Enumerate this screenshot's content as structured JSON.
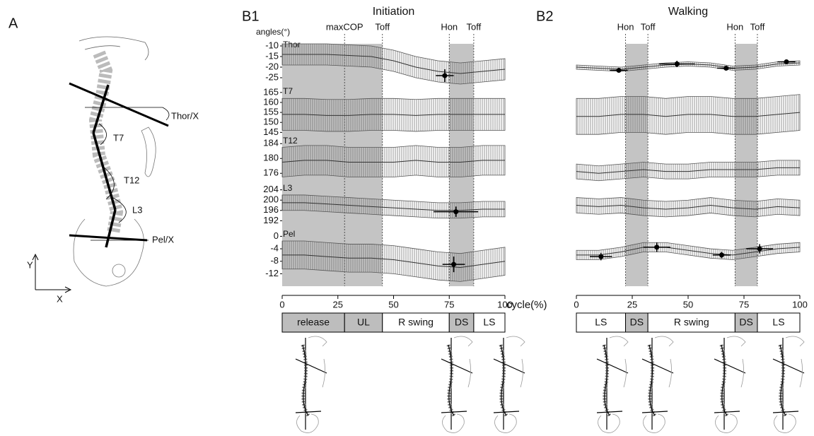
{
  "panel_a": {
    "label": "A",
    "annotations": [
      "Thor/X",
      "T7",
      "T12",
      "L3",
      "Pel/X"
    ],
    "axes": [
      "Y",
      "X"
    ]
  },
  "chart_data": [
    {
      "type": "line",
      "label": "B1",
      "title": "Initiation",
      "y_label": "angles(°)",
      "x_label": "cycle(%)",
      "xlim": [
        0,
        100
      ],
      "xticks": [
        0,
        25,
        50,
        75,
        100
      ],
      "x": [
        0,
        10,
        20,
        30,
        40,
        50,
        60,
        70,
        80,
        90,
        100
      ],
      "events": [
        {
          "label": "maxCOP",
          "x": 28
        },
        {
          "label": "Toff",
          "x": 45
        },
        {
          "label": "Hon",
          "x": 75
        },
        {
          "label": "Toff",
          "x": 86
        }
      ],
      "shaded": [
        [
          0,
          45
        ],
        [
          75,
          86
        ]
      ],
      "phases": [
        {
          "label": "release",
          "start": 0,
          "end": 28,
          "shaded": true
        },
        {
          "label": "UL",
          "start": 28,
          "end": 45,
          "shaded": true
        },
        {
          "label": "R swing",
          "start": 45,
          "end": 75,
          "shaded": false
        },
        {
          "label": "DS",
          "start": 75,
          "end": 86,
          "shaded": true
        },
        {
          "label": "LS",
          "start": 86,
          "end": 100,
          "shaded": false
        }
      ],
      "rows": [
        {
          "name": "Thor",
          "ylim": [
            -29,
            -9
          ],
          "yticks": [
            -10,
            -15,
            -20,
            -25
          ],
          "values": [
            -14,
            -14,
            -14,
            -14.5,
            -15,
            -17,
            -20,
            -22,
            -23,
            -22,
            -21
          ],
          "sd": [
            5,
            5,
            5,
            5,
            5,
            5,
            5,
            5,
            5,
            5,
            5
          ],
          "markers": [
            {
              "x": 73,
              "y": -24,
              "xerr": 4,
              "yerr": 3
            }
          ]
        },
        {
          "name": "T7",
          "ylim": [
            143,
            166
          ],
          "yticks": [
            165,
            160,
            155,
            150,
            145
          ],
          "values": [
            154,
            154,
            153.5,
            153.5,
            154,
            154,
            153.5,
            154,
            154,
            154,
            154
          ],
          "sd": [
            8,
            8,
            8,
            8,
            8,
            8,
            8,
            8,
            8,
            8,
            8
          ],
          "markers": []
        },
        {
          "name": "T12",
          "ylim": [
            173,
            185
          ],
          "yticks": [
            184,
            180,
            176
          ],
          "values": [
            179,
            179.5,
            179.5,
            179,
            179,
            179,
            179.5,
            179,
            179,
            179.5,
            179.5
          ],
          "sd": [
            4,
            4,
            4,
            4,
            4,
            4,
            4,
            4,
            4,
            4,
            4
          ],
          "markers": []
        },
        {
          "name": "L3",
          "ylim": [
            191,
            205
          ],
          "yticks": [
            204,
            200,
            196,
            192
          ],
          "values": [
            199,
            199,
            198.5,
            198,
            197.5,
            197,
            196.5,
            196,
            196,
            196.5,
            196.5
          ],
          "sd": [
            3,
            3,
            3,
            3,
            3,
            3,
            3,
            3,
            3,
            3,
            3
          ],
          "markers": [
            {
              "x": 78,
              "y": 195.5,
              "xerr": 10,
              "yerr": 2
            }
          ]
        },
        {
          "name": "Pel",
          "ylim": [
            -16,
            1
          ],
          "yticks": [
            0,
            -4,
            -8,
            -12
          ],
          "values": [
            -6,
            -6,
            -6.5,
            -7,
            -7,
            -7.5,
            -8.5,
            -9.5,
            -10,
            -9,
            -8
          ],
          "sd": [
            4.5,
            4.5,
            4.5,
            4.5,
            4.5,
            4.5,
            4.5,
            4.5,
            4.5,
            4.5,
            4.5
          ],
          "markers": [
            {
              "x": 77,
              "y": -9,
              "xerr": 5,
              "yerr": 2.5
            }
          ]
        }
      ]
    },
    {
      "type": "line",
      "label": "B2",
      "title": "Walking",
      "xlim": [
        0,
        100
      ],
      "xticks": [
        0,
        25,
        50,
        75,
        100
      ],
      "x": [
        0,
        10,
        20,
        30,
        40,
        50,
        60,
        70,
        80,
        90,
        100
      ],
      "events": [
        {
          "label": "Hon",
          "x": 22
        },
        {
          "label": "Toff",
          "x": 32
        },
        {
          "label": "Hon",
          "x": 71
        },
        {
          "label": "Toff",
          "x": 81
        }
      ],
      "shaded": [
        [
          22,
          32
        ],
        [
          71,
          81
        ]
      ],
      "phases": [
        {
          "label": "LS",
          "start": 0,
          "end": 22,
          "shaded": false
        },
        {
          "label": "DS",
          "start": 22,
          "end": 32,
          "shaded": true
        },
        {
          "label": "R swing",
          "start": 32,
          "end": 71,
          "shaded": false
        },
        {
          "label": "DS",
          "start": 71,
          "end": 81,
          "shaded": true
        },
        {
          "label": "LS",
          "start": 81,
          "end": 100,
          "shaded": false
        }
      ],
      "rows": [
        {
          "ylim": [
            -29,
            -9
          ],
          "values": [
            -20,
            -20.5,
            -21,
            -20,
            -19,
            -18.5,
            -19,
            -20.5,
            -20,
            -18.5,
            -18
          ],
          "sd": [
            1,
            1,
            1,
            1,
            1,
            1,
            1,
            1,
            1,
            1,
            1
          ],
          "markers": [
            {
              "x": 19,
              "y": -21.5,
              "xerr": 4,
              "yerr": 0.8
            },
            {
              "x": 45,
              "y": -18.5,
              "xerr": 8,
              "yerr": 1.5
            },
            {
              "x": 67,
              "y": -20.5,
              "xerr": 4,
              "yerr": 0.8
            },
            {
              "x": 94,
              "y": -17.5,
              "xerr": 4,
              "yerr": 0.8
            }
          ]
        },
        {
          "ylim": [
            143,
            166
          ],
          "values": [
            153,
            153,
            154,
            154,
            153,
            154,
            154,
            153,
            153,
            154,
            155
          ],
          "sd": [
            9,
            9,
            9,
            9,
            9,
            9,
            9,
            9,
            9,
            9,
            9
          ],
          "markers": []
        },
        {
          "ylim": [
            173,
            185
          ],
          "values": [
            176.5,
            176,
            176.5,
            177,
            176.5,
            176.5,
            177,
            177,
            177,
            177.5,
            177.5
          ],
          "sd": [
            2,
            2,
            2,
            2,
            2,
            2,
            2,
            2,
            2,
            2,
            2
          ],
          "markers": []
        },
        {
          "ylim": [
            191,
            205
          ],
          "values": [
            198,
            197.5,
            198,
            197,
            196.5,
            197,
            198,
            197,
            196.5,
            197.5,
            197
          ],
          "sd": [
            3,
            3,
            3,
            3,
            3,
            3,
            3,
            3,
            3,
            3,
            3
          ],
          "markers": []
        },
        {
          "ylim": [
            -16,
            1
          ],
          "values": [
            -6,
            -6,
            -5,
            -3.5,
            -3.5,
            -4.5,
            -5.5,
            -6,
            -5,
            -4,
            -3.5
          ],
          "sd": [
            1.5,
            1.5,
            1.5,
            1.5,
            1.5,
            1.5,
            1.5,
            1.5,
            1.5,
            1.5,
            1.5
          ],
          "markers": [
            {
              "x": 11,
              "y": -6.5,
              "xerr": 5,
              "yerr": 1.2
            },
            {
              "x": 36,
              "y": -3.5,
              "xerr": 6,
              "yerr": 1.5
            },
            {
              "x": 65,
              "y": -6,
              "xerr": 4,
              "yerr": 1
            },
            {
              "x": 82,
              "y": -4,
              "xerr": 6,
              "yerr": 1.5
            }
          ]
        }
      ]
    }
  ]
}
